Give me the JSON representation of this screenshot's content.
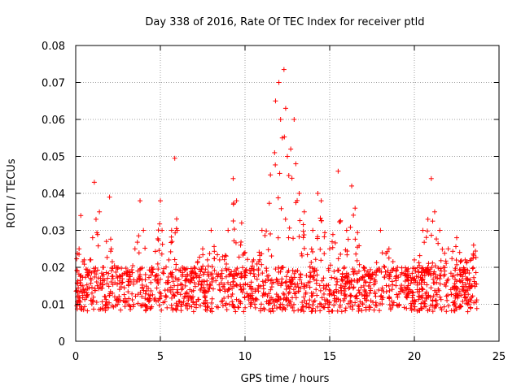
{
  "chart_data": {
    "type": "scatter",
    "title": "Day 338 of 2016, Rate Of TEC Index for receiver ptld",
    "xlabel": "GPS time / hours",
    "ylabel": "ROTI / TECUs",
    "xlim": [
      0,
      25
    ],
    "ylim": [
      0,
      0.08
    ],
    "x_ticks": [
      0,
      5,
      10,
      15,
      20,
      25
    ],
    "y_ticks": [
      0,
      0.01,
      0.02,
      0.03,
      0.04,
      0.05,
      0.06,
      0.07,
      0.08
    ],
    "x_tick_labels": [
      "0",
      "5",
      "10",
      "15",
      "20",
      "25"
    ],
    "y_tick_labels": [
      "0",
      "0.01",
      "0.02",
      "0.03",
      "0.04",
      "0.05",
      "0.06",
      "0.07",
      "0.08"
    ],
    "grid": true,
    "marker": "+",
    "series_color": "#ff0000",
    "series": [
      {
        "name": "ROTI",
        "x": [
          0.1,
          0.2,
          0.3,
          0.5,
          0.7,
          1.0,
          1.1,
          1.2,
          1.4,
          1.6,
          2.0,
          2.1,
          2.5,
          3.0,
          3.5,
          3.8,
          4.0,
          4.5,
          5.0,
          5.1,
          5.5,
          5.85,
          6.0,
          6.3,
          6.6,
          7.0,
          7.5,
          8.0,
          8.5,
          9.0,
          9.3,
          9.5,
          9.8,
          10.0,
          10.5,
          11.0,
          11.5,
          11.8,
          12.0,
          12.1,
          12.2,
          12.3,
          12.4,
          12.5,
          12.7,
          12.9,
          13.0,
          13.2,
          13.5,
          14.0,
          14.3,
          14.5,
          15.0,
          15.5,
          16.0,
          16.3,
          16.5,
          17.0,
          17.5,
          18.0,
          18.5,
          19.0,
          19.5,
          20.0,
          20.5,
          20.8,
          21.0,
          21.2,
          21.5,
          22.0,
          22.5,
          23.0,
          23.5
        ],
        "y": [
          0.012,
          0.025,
          0.034,
          0.022,
          0.018,
          0.028,
          0.043,
          0.033,
          0.035,
          0.02,
          0.039,
          0.025,
          0.02,
          0.018,
          0.025,
          0.038,
          0.03,
          0.02,
          0.038,
          0.03,
          0.022,
          0.0495,
          0.03,
          0.02,
          0.018,
          0.02,
          0.025,
          0.03,
          0.022,
          0.03,
          0.044,
          0.038,
          0.032,
          0.024,
          0.022,
          0.03,
          0.045,
          0.065,
          0.07,
          0.06,
          0.055,
          0.0735,
          0.063,
          0.05,
          0.052,
          0.06,
          0.048,
          0.04,
          0.035,
          0.03,
          0.04,
          0.038,
          0.025,
          0.046,
          0.03,
          0.042,
          0.036,
          0.02,
          0.018,
          0.03,
          0.025,
          0.02,
          0.018,
          0.022,
          0.03,
          0.033,
          0.044,
          0.035,
          0.03,
          0.025,
          0.028,
          0.022,
          0.026
        ]
      }
    ]
  }
}
